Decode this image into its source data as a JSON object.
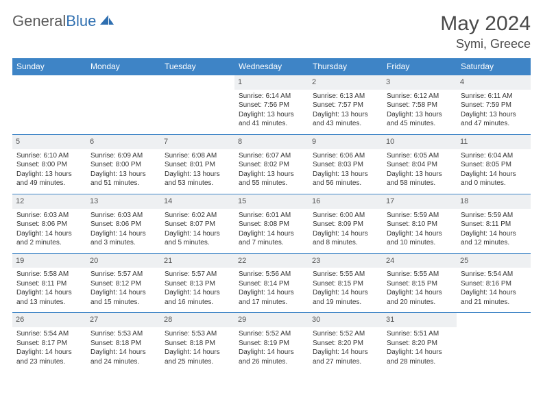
{
  "brand": {
    "part1": "General",
    "part2": "Blue"
  },
  "title": "May 2024",
  "location": "Symi, Greece",
  "colors": {
    "header_bg": "#3e84c6",
    "header_text": "#ffffff",
    "daynum_bg": "#eef0f2",
    "row_border": "#3e84c6",
    "body_text": "#333333",
    "title_text": "#4a4a4a",
    "logo_gray": "#5a5a5a",
    "logo_blue": "#2f6fb0",
    "background": "#ffffff"
  },
  "fonts": {
    "family": "Arial",
    "month_title_pt": 22,
    "location_pt": 13,
    "day_header_pt": 9,
    "daynum_pt": 8,
    "cell_pt": 7.5
  },
  "day_headers": [
    "Sunday",
    "Monday",
    "Tuesday",
    "Wednesday",
    "Thursday",
    "Friday",
    "Saturday"
  ],
  "weeks": [
    [
      {
        "n": "",
        "sunrise": "",
        "sunset": "",
        "daylight": ""
      },
      {
        "n": "",
        "sunrise": "",
        "sunset": "",
        "daylight": ""
      },
      {
        "n": "",
        "sunrise": "",
        "sunset": "",
        "daylight": ""
      },
      {
        "n": "1",
        "sunrise": "Sunrise: 6:14 AM",
        "sunset": "Sunset: 7:56 PM",
        "daylight": "Daylight: 13 hours and 41 minutes."
      },
      {
        "n": "2",
        "sunrise": "Sunrise: 6:13 AM",
        "sunset": "Sunset: 7:57 PM",
        "daylight": "Daylight: 13 hours and 43 minutes."
      },
      {
        "n": "3",
        "sunrise": "Sunrise: 6:12 AM",
        "sunset": "Sunset: 7:58 PM",
        "daylight": "Daylight: 13 hours and 45 minutes."
      },
      {
        "n": "4",
        "sunrise": "Sunrise: 6:11 AM",
        "sunset": "Sunset: 7:59 PM",
        "daylight": "Daylight: 13 hours and 47 minutes."
      }
    ],
    [
      {
        "n": "5",
        "sunrise": "Sunrise: 6:10 AM",
        "sunset": "Sunset: 8:00 PM",
        "daylight": "Daylight: 13 hours and 49 minutes."
      },
      {
        "n": "6",
        "sunrise": "Sunrise: 6:09 AM",
        "sunset": "Sunset: 8:00 PM",
        "daylight": "Daylight: 13 hours and 51 minutes."
      },
      {
        "n": "7",
        "sunrise": "Sunrise: 6:08 AM",
        "sunset": "Sunset: 8:01 PM",
        "daylight": "Daylight: 13 hours and 53 minutes."
      },
      {
        "n": "8",
        "sunrise": "Sunrise: 6:07 AM",
        "sunset": "Sunset: 8:02 PM",
        "daylight": "Daylight: 13 hours and 55 minutes."
      },
      {
        "n": "9",
        "sunrise": "Sunrise: 6:06 AM",
        "sunset": "Sunset: 8:03 PM",
        "daylight": "Daylight: 13 hours and 56 minutes."
      },
      {
        "n": "10",
        "sunrise": "Sunrise: 6:05 AM",
        "sunset": "Sunset: 8:04 PM",
        "daylight": "Daylight: 13 hours and 58 minutes."
      },
      {
        "n": "11",
        "sunrise": "Sunrise: 6:04 AM",
        "sunset": "Sunset: 8:05 PM",
        "daylight": "Daylight: 14 hours and 0 minutes."
      }
    ],
    [
      {
        "n": "12",
        "sunrise": "Sunrise: 6:03 AM",
        "sunset": "Sunset: 8:06 PM",
        "daylight": "Daylight: 14 hours and 2 minutes."
      },
      {
        "n": "13",
        "sunrise": "Sunrise: 6:03 AM",
        "sunset": "Sunset: 8:06 PM",
        "daylight": "Daylight: 14 hours and 3 minutes."
      },
      {
        "n": "14",
        "sunrise": "Sunrise: 6:02 AM",
        "sunset": "Sunset: 8:07 PM",
        "daylight": "Daylight: 14 hours and 5 minutes."
      },
      {
        "n": "15",
        "sunrise": "Sunrise: 6:01 AM",
        "sunset": "Sunset: 8:08 PM",
        "daylight": "Daylight: 14 hours and 7 minutes."
      },
      {
        "n": "16",
        "sunrise": "Sunrise: 6:00 AM",
        "sunset": "Sunset: 8:09 PM",
        "daylight": "Daylight: 14 hours and 8 minutes."
      },
      {
        "n": "17",
        "sunrise": "Sunrise: 5:59 AM",
        "sunset": "Sunset: 8:10 PM",
        "daylight": "Daylight: 14 hours and 10 minutes."
      },
      {
        "n": "18",
        "sunrise": "Sunrise: 5:59 AM",
        "sunset": "Sunset: 8:11 PM",
        "daylight": "Daylight: 14 hours and 12 minutes."
      }
    ],
    [
      {
        "n": "19",
        "sunrise": "Sunrise: 5:58 AM",
        "sunset": "Sunset: 8:11 PM",
        "daylight": "Daylight: 14 hours and 13 minutes."
      },
      {
        "n": "20",
        "sunrise": "Sunrise: 5:57 AM",
        "sunset": "Sunset: 8:12 PM",
        "daylight": "Daylight: 14 hours and 15 minutes."
      },
      {
        "n": "21",
        "sunrise": "Sunrise: 5:57 AM",
        "sunset": "Sunset: 8:13 PM",
        "daylight": "Daylight: 14 hours and 16 minutes."
      },
      {
        "n": "22",
        "sunrise": "Sunrise: 5:56 AM",
        "sunset": "Sunset: 8:14 PM",
        "daylight": "Daylight: 14 hours and 17 minutes."
      },
      {
        "n": "23",
        "sunrise": "Sunrise: 5:55 AM",
        "sunset": "Sunset: 8:15 PM",
        "daylight": "Daylight: 14 hours and 19 minutes."
      },
      {
        "n": "24",
        "sunrise": "Sunrise: 5:55 AM",
        "sunset": "Sunset: 8:15 PM",
        "daylight": "Daylight: 14 hours and 20 minutes."
      },
      {
        "n": "25",
        "sunrise": "Sunrise: 5:54 AM",
        "sunset": "Sunset: 8:16 PM",
        "daylight": "Daylight: 14 hours and 21 minutes."
      }
    ],
    [
      {
        "n": "26",
        "sunrise": "Sunrise: 5:54 AM",
        "sunset": "Sunset: 8:17 PM",
        "daylight": "Daylight: 14 hours and 23 minutes."
      },
      {
        "n": "27",
        "sunrise": "Sunrise: 5:53 AM",
        "sunset": "Sunset: 8:18 PM",
        "daylight": "Daylight: 14 hours and 24 minutes."
      },
      {
        "n": "28",
        "sunrise": "Sunrise: 5:53 AM",
        "sunset": "Sunset: 8:18 PM",
        "daylight": "Daylight: 14 hours and 25 minutes."
      },
      {
        "n": "29",
        "sunrise": "Sunrise: 5:52 AM",
        "sunset": "Sunset: 8:19 PM",
        "daylight": "Daylight: 14 hours and 26 minutes."
      },
      {
        "n": "30",
        "sunrise": "Sunrise: 5:52 AM",
        "sunset": "Sunset: 8:20 PM",
        "daylight": "Daylight: 14 hours and 27 minutes."
      },
      {
        "n": "31",
        "sunrise": "Sunrise: 5:51 AM",
        "sunset": "Sunset: 8:20 PM",
        "daylight": "Daylight: 14 hours and 28 minutes."
      },
      {
        "n": "",
        "sunrise": "",
        "sunset": "",
        "daylight": ""
      }
    ]
  ]
}
